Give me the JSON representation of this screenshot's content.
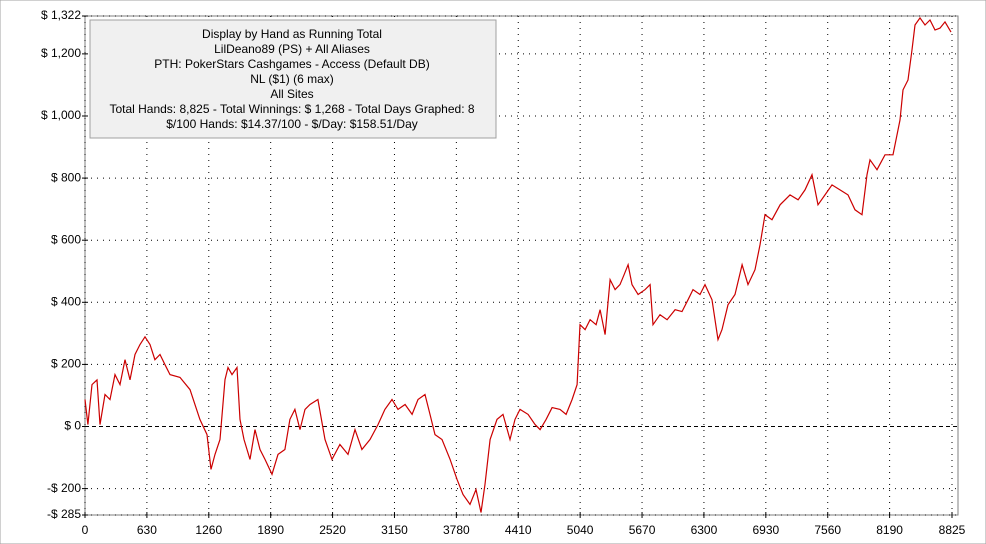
{
  "chart_data": {
    "type": "line",
    "title": "Display by Hand as Running Total",
    "annotations": [
      "LilDeano89 (PS) + All Aliases",
      "PTH: PokerStars Cashgames - Access (Default DB)",
      "NL ($1) (6 max)",
      "All Sites",
      "Total Hands: 8,825 - Total Winnings: $ 1,268 - Total Days Graphed: 8",
      "$/100 Hands: $14.37/100 - $/Day: $158.51/Day"
    ],
    "color": "#cc0000",
    "grid": true,
    "xlim": [
      0,
      8825
    ],
    "ylim": [
      -285,
      1322
    ],
    "xticks": [
      0,
      630,
      1260,
      1890,
      2520,
      3150,
      3780,
      4410,
      5040,
      5670,
      6300,
      6930,
      7560,
      8190,
      8825
    ],
    "yticks": [
      {
        "value": -285,
        "label": "-$ 285"
      },
      {
        "value": -200,
        "label": "-$ 200"
      },
      {
        "value": 0,
        "label": "$ 0"
      },
      {
        "value": 200,
        "label": "$ 200"
      },
      {
        "value": 400,
        "label": "$ 400"
      },
      {
        "value": 600,
        "label": "$ 600"
      },
      {
        "value": 800,
        "label": "$ 800"
      },
      {
        "value": 1000,
        "label": "$ 1,000"
      },
      {
        "value": 1200,
        "label": "$ 1,200"
      },
      {
        "value": 1322,
        "label": "$ 1,322"
      }
    ],
    "x": [
      0,
      30,
      71,
      122,
      153,
      204,
      254,
      305,
      356,
      407,
      458,
      509,
      560,
      611,
      662,
      712,
      763,
      814,
      865,
      967,
      1069,
      1170,
      1242,
      1283,
      1323,
      1374,
      1425,
      1456,
      1496,
      1547,
      1578,
      1618,
      1679,
      1730,
      1781,
      1832,
      1903,
      1964,
      2035,
      2086,
      2137,
      2188,
      2239,
      2290,
      2371,
      2443,
      2514,
      2595,
      2677,
      2748,
      2819,
      2901,
      2982,
      3053,
      3125,
      3186,
      3258,
      3329,
      3390,
      3461,
      3512,
      3563,
      3634,
      3716,
      3787,
      3848,
      3919,
      3980,
      4031,
      4072,
      4123,
      4194,
      4255,
      4326,
      4377,
      4428,
      4510,
      4581,
      4632,
      4693,
      4754,
      4835,
      4897,
      4958,
      5009,
      5039,
      5090,
      5141,
      5202,
      5243,
      5294,
      5345,
      5396,
      5446,
      5487,
      5528,
      5568,
      5630,
      5701,
      5752,
      5782,
      5853,
      5925,
      6006,
      6077,
      6138,
      6189,
      6260,
      6311,
      6382,
      6443,
      6484,
      6545,
      6616,
      6688,
      6749,
      6820,
      6871,
      6922,
      6993,
      7075,
      7176,
      7258,
      7329,
      7400,
      7461,
      7532,
      7604,
      7685,
      7766,
      7838,
      7909,
      7960,
      7990,
      8062,
      8143,
      8224,
      8296,
      8326,
      8377,
      8418,
      8448,
      8499,
      8550,
      8601,
      8652,
      8703,
      8754,
      8815
    ],
    "values": [
      87,
      6,
      135,
      150,
      6,
      103,
      87,
      167,
      135,
      215,
      150,
      232,
      264,
      289,
      264,
      215,
      232,
      199,
      167,
      158,
      119,
      23,
      -26,
      -138,
      -90,
      -42,
      151,
      190,
      167,
      190,
      23,
      -42,
      -106,
      -10,
      -74,
      -106,
      -154,
      -90,
      -74,
      23,
      55,
      -10,
      55,
      71,
      87,
      -42,
      -106,
      -58,
      -90,
      -10,
      -74,
      -42,
      6,
      55,
      87,
      55,
      71,
      39,
      87,
      103,
      39,
      -26,
      -42,
      -106,
      -170,
      -219,
      -251,
      -203,
      -277,
      -186,
      -42,
      23,
      39,
      -42,
      23,
      55,
      39,
      6,
      -10,
      23,
      61,
      55,
      39,
      87,
      135,
      328,
      312,
      344,
      328,
      376,
      296,
      473,
      441,
      457,
      489,
      521,
      457,
      425,
      441,
      457,
      328,
      360,
      344,
      376,
      370,
      408,
      441,
      425,
      457,
      408,
      280,
      312,
      392,
      425,
      521,
      457,
      505,
      585,
      682,
      666,
      714,
      746,
      730,
      762,
      811,
      714,
      746,
      778,
      762,
      746,
      698,
      682,
      811,
      859,
      827,
      875,
      875,
      987,
      1084,
      1116,
      1213,
      1293,
      1316,
      1293,
      1309,
      1277,
      1283,
      1303,
      1270
    ]
  }
}
